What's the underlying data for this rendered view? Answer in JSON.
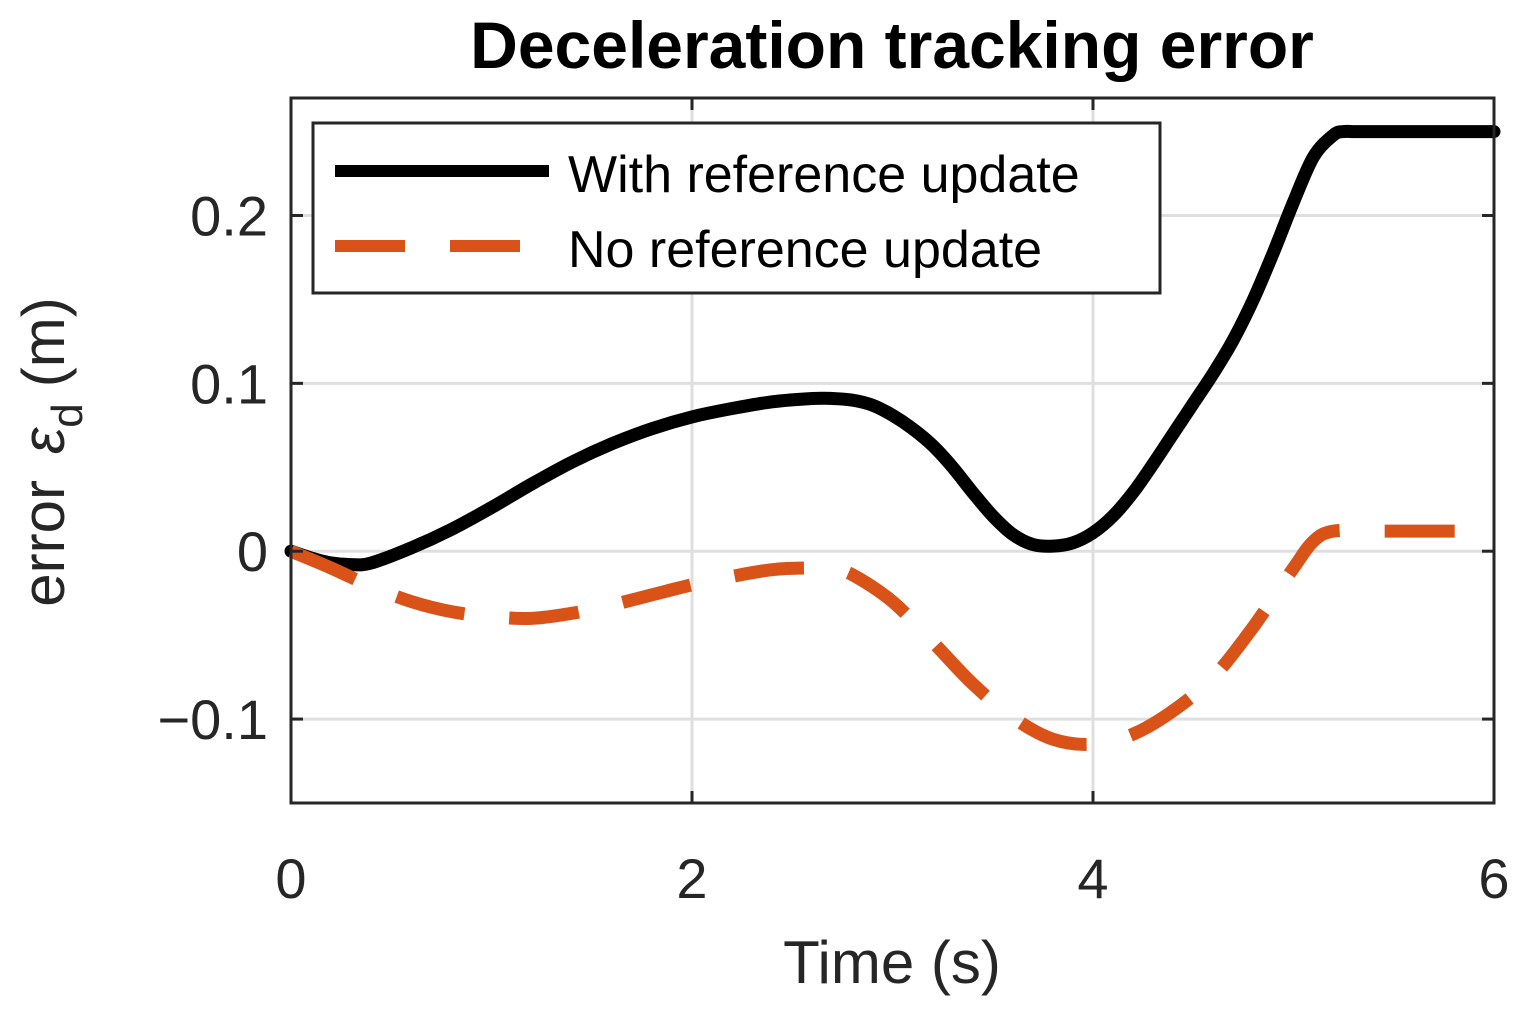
{
  "chart_data": {
    "type": "line",
    "title": "Deceleration tracking error",
    "xlabel": "Time (s)",
    "ylabel_prefix": "error",
    "ylabel_symbol": "ε",
    "ylabel_subscript": "d",
    "ylabel_unit": "(m)",
    "xlim": [
      0,
      6
    ],
    "ylim": [
      -0.15,
      0.27
    ],
    "xticks": [
      0,
      2,
      4,
      6
    ],
    "xtick_labels": [
      "0",
      "2",
      "4",
      "6"
    ],
    "yticks": [
      -0.1,
      0,
      0.1,
      0.2
    ],
    "ytick_labels": [
      "−0.1",
      "0",
      "0.1",
      "0.2"
    ],
    "grid": true,
    "legend_position": "top-left",
    "series": [
      {
        "name": "With reference update",
        "color": "#000000",
        "style": "solid",
        "x": [
          0,
          0.1,
          0.2,
          0.3,
          0.4,
          0.6,
          0.8,
          1.0,
          1.2,
          1.4,
          1.6,
          1.8,
          2.0,
          2.2,
          2.4,
          2.6,
          2.7,
          2.8,
          2.9,
          3.0,
          3.1,
          3.2,
          3.3,
          3.4,
          3.5,
          3.6,
          3.7,
          3.8,
          3.9,
          4.0,
          4.1,
          4.2,
          4.3,
          4.4,
          4.5,
          4.6,
          4.7,
          4.8,
          4.9,
          5.0,
          5.1,
          5.2,
          5.25,
          5.3,
          5.5,
          5.7,
          6.0
        ],
        "values": [
          0,
          -0.004,
          -0.007,
          -0.008,
          -0.007,
          0.002,
          0.013,
          0.026,
          0.04,
          0.053,
          0.064,
          0.073,
          0.08,
          0.085,
          0.089,
          0.091,
          0.091,
          0.09,
          0.087,
          0.081,
          0.073,
          0.063,
          0.05,
          0.035,
          0.021,
          0.01,
          0.004,
          0.003,
          0.005,
          0.011,
          0.021,
          0.035,
          0.052,
          0.07,
          0.088,
          0.106,
          0.126,
          0.15,
          0.178,
          0.208,
          0.235,
          0.248,
          0.25,
          0.25,
          0.25,
          0.25,
          0.25
        ]
      },
      {
        "name": "No reference update",
        "color": "#D95319",
        "style": "dashed",
        "x": [
          0,
          0.2,
          0.4,
          0.6,
          0.8,
          1.0,
          1.2,
          1.4,
          1.6,
          1.8,
          2.0,
          2.2,
          2.4,
          2.6,
          2.7,
          2.8,
          3.0,
          3.2,
          3.4,
          3.6,
          3.8,
          4.0,
          4.2,
          4.4,
          4.6,
          4.8,
          5.0,
          5.1,
          5.2,
          5.4,
          5.6,
          6.0
        ],
        "values": [
          0,
          -0.01,
          -0.021,
          -0.03,
          -0.036,
          -0.039,
          -0.04,
          -0.037,
          -0.032,
          -0.026,
          -0.02,
          -0.015,
          -0.011,
          -0.01,
          -0.011,
          -0.014,
          -0.03,
          -0.054,
          -0.079,
          -0.099,
          -0.112,
          -0.115,
          -0.109,
          -0.095,
          -0.075,
          -0.045,
          -0.01,
          0.006,
          0.012,
          0.012,
          0.012,
          0.012
        ]
      }
    ]
  }
}
